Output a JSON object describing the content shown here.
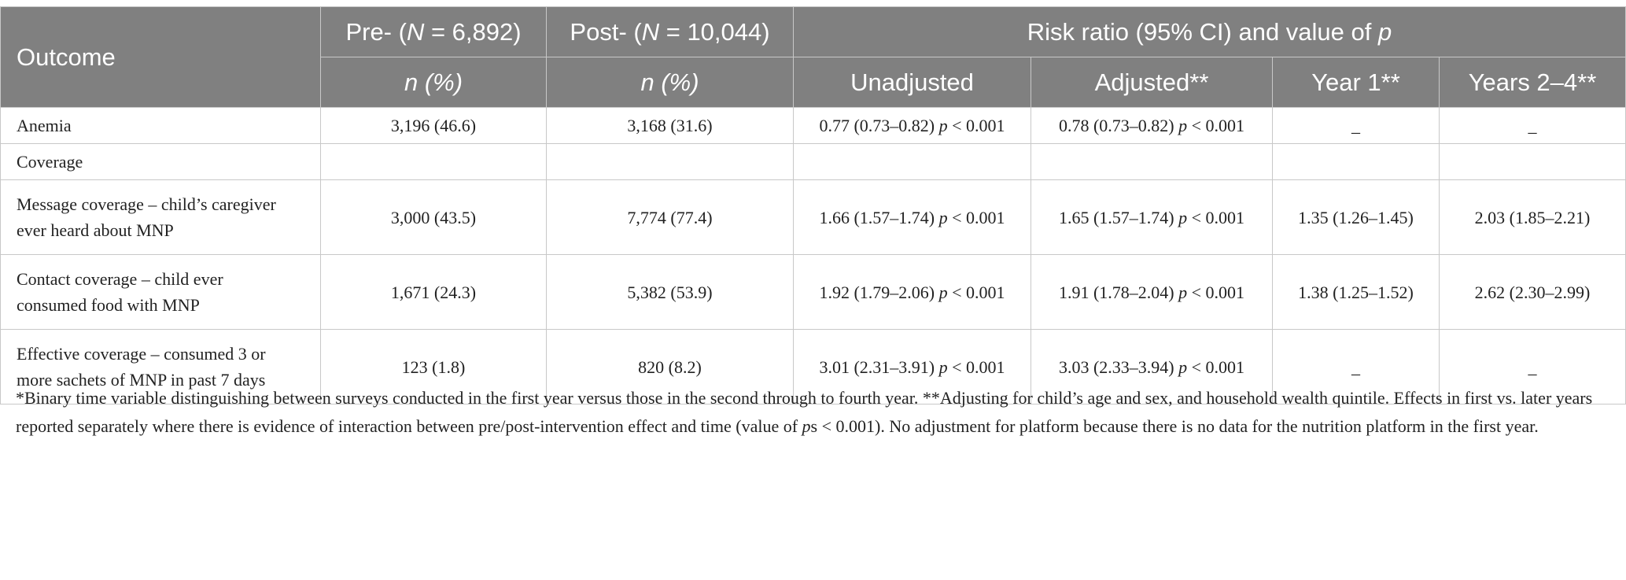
{
  "header": {
    "outcome": "Outcome",
    "pre_label": "Pre- (",
    "pre_n": "N",
    "pre_value": " = 6,892)",
    "post_label": "Post- (",
    "post_n": "N",
    "post_value": " = 10,044)",
    "risk_label": "Risk ratio (95% CI) and value of ",
    "risk_p": "p",
    "sub_pre_n": "n",
    "sub_pre_pct": " (%)",
    "sub_post_n": "n",
    "sub_post_pct": " (%)",
    "unadjusted": "Unadjusted",
    "adjusted": "Adjusted**",
    "year1": "Year 1**",
    "years24": "Years 2–4**"
  },
  "rows": [
    {
      "outcome": "Anemia",
      "pre": "3,196 (46.6)",
      "post": "3,168 (31.6)",
      "unadj_rr": "0.77 (0.73–0.82) ",
      "unadj_p": "p",
      "unadj_pv": " < 0.001",
      "adj_rr": "0.78 (0.73–0.82) ",
      "adj_p": "p",
      "adj_pv": " < 0.001",
      "year1": "_",
      "years24": "_"
    },
    {
      "outcome": "Coverage",
      "pre": "",
      "post": "",
      "unadj_rr": "",
      "unadj_p": "",
      "unadj_pv": "",
      "adj_rr": "",
      "adj_p": "",
      "adj_pv": "",
      "year1": "",
      "years24": ""
    },
    {
      "outcome_line1": "Message coverage – child’s caregiver",
      "outcome_line2": "ever heard about MNP",
      "pre": "3,000 (43.5)",
      "post": "7,774 (77.4)",
      "unadj_rr": "1.66 (1.57–1.74) ",
      "unadj_p": "p",
      "unadj_pv": " < 0.001",
      "adj_rr": "1.65 (1.57–1.74) ",
      "adj_p": "p",
      "adj_pv": " < 0.001",
      "year1": "1.35 (1.26–1.45)",
      "years24": "2.03 (1.85–2.21)"
    },
    {
      "outcome_line1": "Contact coverage – child ever",
      "outcome_line2": "consumed food with MNP",
      "pre": "1,671 (24.3)",
      "post": "5,382 (53.9)",
      "unadj_rr": "1.92 (1.79–2.06) ",
      "unadj_p": "p",
      "unadj_pv": " < 0.001",
      "adj_rr": "1.91 (1.78–2.04) ",
      "adj_p": "p",
      "adj_pv": " < 0.001",
      "year1": "1.38 (1.25–1.52)",
      "years24": "2.62 (2.30–2.99)"
    },
    {
      "outcome_line1": "Effective coverage – consumed 3 or",
      "outcome_line2": "more sachets of MNP in past 7 days",
      "pre": "123 (1.8)",
      "post": "820 (8.2)",
      "unadj_rr": "3.01 (2.31–3.91) ",
      "unadj_p": "p",
      "unadj_pv": " < 0.001",
      "adj_rr": "3.03 (2.33–3.94) ",
      "adj_p": "p",
      "adj_pv": " < 0.001",
      "year1": "_",
      "years24": "_"
    }
  ],
  "footnote": {
    "part1": "*Binary time variable distinguishing between surveys conducted in the first year versus those in the second through to fourth year. **Adjusting for child’s age and sex, and household wealth quintile. Effects in first vs. later years reported separately where there is evidence of interaction between pre/post-intervention effect and time (value of ",
    "p_italic": "p",
    "part2": "s < 0.001). No adjustment for platform because there is no data for the nutrition platform in the first year."
  }
}
